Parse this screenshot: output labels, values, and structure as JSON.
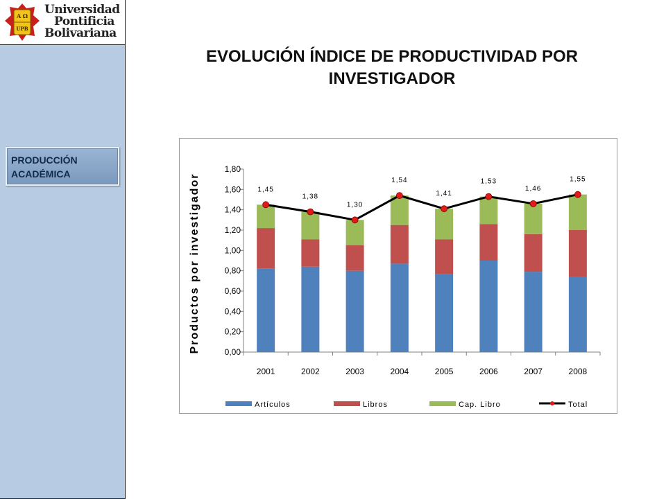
{
  "logo": {
    "line1": "Universidad",
    "line2": "Pontificia",
    "line3": "Bolivariana",
    "shield_letters": [
      "A",
      "Ω",
      "U",
      "P",
      "B"
    ]
  },
  "sidebar": {
    "section_label": "PRODUCCIÓN ACADÉMICA"
  },
  "page": {
    "title": "EVOLUCIÓN ÍNDICE DE PRODUCTIVIDAD POR INVESTIGADOR"
  },
  "colors": {
    "articulos": "#4f81bd",
    "libros": "#c0504d",
    "cap_libro": "#9bbb59",
    "total_line": "#000000",
    "total_marker": "#e11a1a"
  },
  "chart_data": {
    "type": "bar",
    "stacked": true,
    "categories": [
      "2001",
      "2002",
      "2003",
      "2004",
      "2005",
      "2006",
      "2007",
      "2008"
    ],
    "series": [
      {
        "name": "Artículos",
        "type": "bar",
        "values": [
          0.82,
          0.84,
          0.8,
          0.87,
          0.77,
          0.9,
          0.79,
          0.74
        ]
      },
      {
        "name": "Libros",
        "type": "bar",
        "values": [
          0.4,
          0.27,
          0.25,
          0.38,
          0.34,
          0.36,
          0.37,
          0.46
        ]
      },
      {
        "name": "Cap. Libro",
        "type": "bar",
        "values": [
          0.23,
          0.27,
          0.25,
          0.29,
          0.3,
          0.27,
          0.3,
          0.35
        ]
      },
      {
        "name": "Total",
        "type": "line",
        "values": [
          1.45,
          1.38,
          1.3,
          1.54,
          1.41,
          1.53,
          1.46,
          1.55
        ]
      }
    ],
    "data_labels": [
      "1,45",
      "1,38",
      "1,30",
      "1,54",
      "1,41",
      "1,53",
      "1,46",
      "1,55"
    ],
    "ylabel": "Productos por investigador",
    "xlabel": "",
    "ylim": [
      0,
      1.8
    ],
    "yticks": [
      "0,00",
      "0,20",
      "0,40",
      "0,60",
      "0,80",
      "1,00",
      "1,20",
      "1,40",
      "1,60",
      "1,80"
    ],
    "grid": false,
    "legend_position": "bottom"
  }
}
